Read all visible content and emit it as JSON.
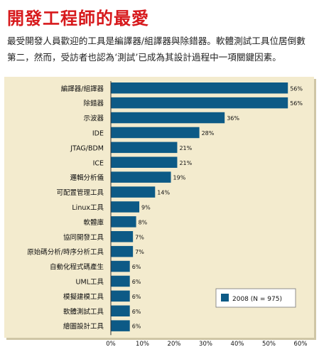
{
  "title": "開發工程師的最愛",
  "intro": "最受開發人員歡迎的工具是編譯器/組譯器與除錯器。軟體測試工具位居倒數第二，然而，受訪者也認為‘測試’已成為其設計過程中一項關鍵因素。",
  "chart_data": {
    "type": "bar",
    "orientation": "horizontal",
    "categories": [
      "編譯器/組譯器",
      "除錯器",
      "示波器",
      "IDE",
      "JTAG/BDM",
      "ICE",
      "邏輯分析儀",
      "可配置管理工具",
      "Linux工具",
      "軟體庫",
      "協同開發工具",
      "原始碼分析/時序分析工具",
      "自動化程式碼產生",
      "UML工具",
      "模擬建模工具",
      "軟體測試工具",
      "繪圖設計工具"
    ],
    "series": [
      {
        "name": "2008 (N = 975)",
        "values": [
          56,
          56,
          36,
          28,
          21,
          21,
          19,
          14,
          9,
          8,
          7,
          7,
          6,
          6,
          6,
          6,
          6
        ]
      }
    ],
    "value_labels": [
      "56%",
      "56%",
      "36%",
      "28%",
      "21%",
      "21%",
      "19%",
      "14%",
      "9%",
      "8%",
      "7%",
      "7%",
      "6%",
      "6%",
      "6%",
      "6%",
      "6%"
    ],
    "xticks": [
      "0%",
      "10%",
      "20%",
      "30%",
      "40%",
      "50%",
      "60%"
    ],
    "xlim": [
      0,
      60
    ],
    "legend": "bottom-right",
    "grid": false,
    "colors": {
      "bar": "#0d5a86",
      "panel": "#f3ebce",
      "panel_shadow": "#cfc6a6",
      "title": "#d7191c"
    }
  }
}
